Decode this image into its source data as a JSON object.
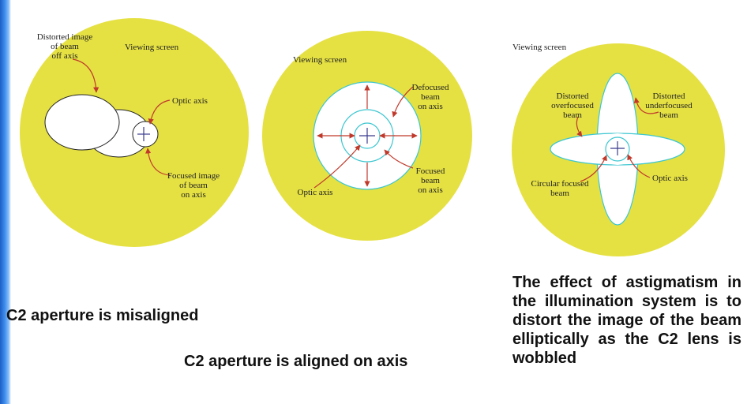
{
  "panels": [
    {
      "id": "misaligned",
      "screen_label": "Viewing screen",
      "labels": {
        "distorted_line1": "Distorted image",
        "distorted_line2": "of beam",
        "distorted_line3": "off axis",
        "optic_axis": "Optic axis",
        "focused_line1": "Focused image",
        "focused_line2": "of beam",
        "focused_line3": "on axis"
      },
      "caption": "C2 aperture is misaligned"
    },
    {
      "id": "aligned",
      "screen_label": "Viewing screen",
      "labels": {
        "defocused_line1": "Defocused",
        "defocused_line2": "beam",
        "defocused_line3": "on axis",
        "focused_line1": "Focused",
        "focused_line2": "beam",
        "focused_line3": "on axis",
        "optic_axis": "Optic axis"
      },
      "caption": "C2 aperture is aligned on axis"
    },
    {
      "id": "astigmatism",
      "screen_label": "Viewing screen",
      "labels": {
        "over_line1": "Distorted",
        "over_line2": "overfocused",
        "over_line3": "beam",
        "under_line1": "Distorted",
        "under_line2": "underfocused",
        "under_line3": "beam",
        "circular_line1": "Circular focused",
        "circular_line2": "beam",
        "optic_axis": "Optic axis"
      },
      "caption": "The effect of astigmatism in the illumination system is to distort the image of the beam elliptically as the C2 lens is wobbled"
    }
  ],
  "colors": {
    "screen_fill": "#e5e143",
    "beam_fill": "#ffffff",
    "cyan_outline": "#3cc6d0",
    "arrow": "#c0392b",
    "cross": "#3b3b8f",
    "sidebar": "#2f7be0"
  }
}
